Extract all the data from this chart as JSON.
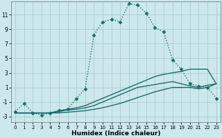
{
  "xlabel": "Humidex (Indice chaleur)",
  "bg_color": "#cce8ec",
  "grid_color": "#aacccc",
  "line_color": "#1a6b6b",
  "x_ticks": [
    0,
    1,
    2,
    3,
    4,
    5,
    6,
    7,
    8,
    9,
    10,
    11,
    12,
    13,
    14,
    15,
    16,
    17,
    18,
    19,
    20,
    21,
    22,
    23
  ],
  "y_ticks": [
    -3,
    -1,
    1,
    3,
    5,
    7,
    9,
    11
  ],
  "xlim": [
    -0.5,
    23.5
  ],
  "ylim": [
    -3.8,
    12.8
  ],
  "series": [
    {
      "x": [
        0,
        1,
        2,
        3,
        4,
        5,
        6,
        7,
        8,
        9,
        10,
        11,
        12,
        13,
        14,
        15,
        16,
        17,
        18,
        19,
        20,
        21,
        22,
        23
      ],
      "y": [
        -2.3,
        -1.2,
        -2.5,
        -2.8,
        -2.5,
        -2.2,
        -2.0,
        -0.5,
        0.8,
        8.2,
        10.0,
        10.3,
        10.0,
        12.5,
        12.3,
        11.2,
        9.2,
        8.6,
        4.8,
        3.5,
        1.5,
        1.2,
        1.0,
        -0.5
      ],
      "style": "dotted_markers",
      "ms": 2.5,
      "lw": 1.0
    },
    {
      "x": [
        0,
        1,
        2,
        3,
        4,
        5,
        6,
        7,
        8,
        9,
        10,
        11,
        12,
        13,
        14,
        15,
        16,
        17,
        18,
        19,
        20,
        21,
        22,
        23
      ],
      "y": [
        -2.5,
        -2.5,
        -2.5,
        -2.5,
        -2.5,
        -2.2,
        -2.0,
        -1.8,
        -1.5,
        -1.0,
        -0.5,
        0.0,
        0.5,
        1.0,
        1.5,
        2.0,
        2.5,
        2.8,
        3.0,
        3.2,
        3.5,
        3.5,
        3.5,
        1.5
      ],
      "style": "solid",
      "ms": 0,
      "lw": 1.0
    },
    {
      "x": [
        0,
        1,
        2,
        3,
        4,
        5,
        6,
        7,
        8,
        9,
        10,
        11,
        12,
        13,
        14,
        15,
        16,
        17,
        18,
        19,
        20,
        21,
        22,
        23
      ],
      "y": [
        -2.5,
        -2.5,
        -2.5,
        -2.5,
        -2.5,
        -2.3,
        -2.1,
        -2.0,
        -1.8,
        -1.5,
        -1.0,
        -0.5,
        0.0,
        0.5,
        1.0,
        1.2,
        1.4,
        1.6,
        1.8,
        1.5,
        1.2,
        1.0,
        1.3,
        1.5
      ],
      "style": "solid",
      "ms": 0,
      "lw": 1.0
    },
    {
      "x": [
        0,
        1,
        2,
        3,
        4,
        5,
        6,
        7,
        8,
        9,
        10,
        11,
        12,
        13,
        14,
        15,
        16,
        17,
        18,
        19,
        20,
        21,
        22,
        23
      ],
      "y": [
        -2.5,
        -2.5,
        -2.5,
        -2.5,
        -2.5,
        -2.5,
        -2.4,
        -2.3,
        -2.2,
        -2.0,
        -1.8,
        -1.5,
        -1.2,
        -0.8,
        -0.4,
        0.0,
        0.4,
        0.7,
        1.0,
        1.0,
        1.0,
        0.8,
        1.0,
        1.5
      ],
      "style": "solid",
      "ms": 0,
      "lw": 1.0
    }
  ]
}
